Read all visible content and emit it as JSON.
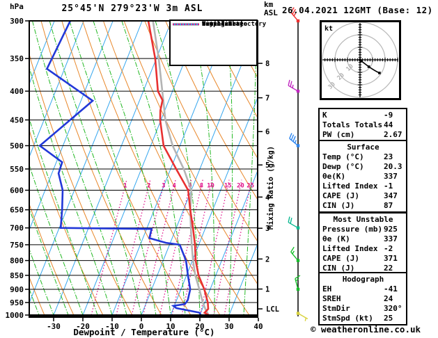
{
  "header": {
    "station_title": "25°45'N 279°23'W 3m ASL",
    "datetime_title": "26.04.2021 12GMT (Base: 12)",
    "pressure_unit": "hPa",
    "altitude_unit_line1": "km",
    "altitude_unit_line2": "ASL"
  },
  "footer": {
    "xaxis_label": "Dewpoint / Temperature (°C)",
    "copyright": "© weatheronline.co.uk"
  },
  "legend": {
    "items": [
      {
        "label": "Temperature",
        "color": "#e83030",
        "width": 4,
        "style": "solid"
      },
      {
        "label": "Dewpoint",
        "color": "#2238d8",
        "width": 4,
        "style": "solid"
      },
      {
        "label": "Parcel Trajectory",
        "color": "#b4b4b4",
        "width": 4,
        "style": "solid"
      },
      {
        "label": "Dry Adiabat",
        "color": "#e8872a",
        "width": 2,
        "style": "solid"
      },
      {
        "label": "Wet Adiabat",
        "color": "#22b822",
        "width": 2,
        "style": "solid"
      },
      {
        "label": "Isotherm",
        "color": "#35a6ee",
        "width": 2,
        "style": "solid"
      },
      {
        "label": "Mixing Ratio",
        "color": "#e0148c",
        "width": 2,
        "style": "dotted"
      }
    ]
  },
  "chart_data": {
    "type": "skewt-log-p-sounding",
    "pressure_ticks_hpa": [
      300,
      350,
      400,
      450,
      500,
      550,
      600,
      650,
      700,
      750,
      800,
      850,
      900,
      950,
      1000
    ],
    "temp_ticks_c": [
      -30,
      -20,
      -10,
      0,
      10,
      20,
      30,
      40
    ],
    "km_ticks": [
      {
        "km": 1,
        "hpa": 899
      },
      {
        "km": 2,
        "hpa": 795
      },
      {
        "km": 3,
        "hpa": 701
      },
      {
        "km": 4,
        "hpa": 617
      },
      {
        "km": 5,
        "hpa": 541
      },
      {
        "km": 6,
        "hpa": 472
      },
      {
        "km": 7,
        "hpa": 411
      },
      {
        "km": 8,
        "hpa": 357
      }
    ],
    "lcl": {
      "label": "LCL",
      "hpa": 975
    },
    "mixing_ratio_axis_label": "Mixing Ratio (g/kg)",
    "mixing_ratio_lines_gkg": [
      1,
      2,
      3,
      4,
      6,
      8,
      10,
      15,
      20,
      25
    ],
    "mixing_ratio_label_row_hpa": 588,
    "temperature_profile_c_by_hpa": [
      [
        1000,
        23
      ],
      [
        991,
        21.3
      ],
      [
        975,
        22
      ],
      [
        950,
        21
      ],
      [
        925,
        19.5
      ],
      [
        900,
        18
      ],
      [
        850,
        14.1
      ],
      [
        800,
        11.1
      ],
      [
        750,
        8.7
      ],
      [
        700,
        5.7
      ],
      [
        650,
        2.3
      ],
      [
        600,
        -1.1
      ],
      [
        550,
        -8.1
      ],
      [
        500,
        -15.6
      ],
      [
        450,
        -20.3
      ],
      [
        433,
        -21.5
      ],
      [
        415,
        -22.2
      ],
      [
        400,
        -25
      ],
      [
        350,
        -30.4
      ],
      [
        300,
        -37.9
      ]
    ],
    "dewpoint_profile_c_by_hpa": [
      [
        1000,
        20.3
      ],
      [
        990,
        19.5
      ],
      [
        972,
        11
      ],
      [
        963,
        9.7
      ],
      [
        956,
        13.4
      ],
      [
        940,
        13.8
      ],
      [
        900,
        13.2
      ],
      [
        850,
        10.5
      ],
      [
        800,
        7.8
      ],
      [
        750,
        3.5
      ],
      [
        744,
        -1.5
      ],
      [
        730,
        -7.8
      ],
      [
        703,
        -8.3
      ],
      [
        700,
        -39.5
      ],
      [
        650,
        -41.5
      ],
      [
        600,
        -44
      ],
      [
        560,
        -47.7
      ],
      [
        535,
        -48
      ],
      [
        500,
        -57.9
      ],
      [
        416,
        -46
      ],
      [
        365,
        -66
      ],
      [
        300,
        -64.6
      ]
    ],
    "parcel_profile_c_by_hpa": [
      [
        1000,
        23
      ],
      [
        975,
        21
      ],
      [
        950,
        19.3
      ],
      [
        900,
        16.3
      ],
      [
        850,
        13.0
      ],
      [
        800,
        10.2
      ],
      [
        750,
        7.6
      ],
      [
        700,
        5.0
      ],
      [
        650,
        2.3
      ],
      [
        600,
        0
      ],
      [
        550,
        -5.5
      ],
      [
        500,
        -12.5
      ],
      [
        450,
        -18.5
      ],
      [
        400,
        -23.5
      ],
      [
        350,
        -29.2
      ],
      [
        300,
        -36.3
      ]
    ],
    "wind_barbs": [
      {
        "hpa": 300,
        "from_deg": 320,
        "speed_kt": 25,
        "color": "#f03030"
      },
      {
        "hpa": 400,
        "from_deg": 300,
        "speed_kt": 25,
        "color": "#c026c0"
      },
      {
        "hpa": 500,
        "from_deg": 310,
        "speed_kt": 35,
        "color": "#2e86f0"
      },
      {
        "hpa": 700,
        "from_deg": 300,
        "speed_kt": 20,
        "color": "#0ab890"
      },
      {
        "hpa": 800,
        "from_deg": 320,
        "speed_kt": 15,
        "color": "#16be2a"
      },
      {
        "hpa": 900,
        "from_deg": 345,
        "speed_kt": 15,
        "color": "#16be2a"
      },
      {
        "hpa": 993,
        "from_deg": 120,
        "speed_kt": 5,
        "color": "#d8d23e"
      }
    ],
    "hodograph": {
      "unit": "kt",
      "ring_step_kt": 10,
      "ring_labels": [
        "10",
        "20",
        "30"
      ],
      "trace_uv_kt": [
        [
          15.5,
          -10.5
        ],
        [
          7,
          -5.5
        ],
        [
          0.8,
          -0.8
        ]
      ],
      "dots_uv_kt": [
        [
          15.5,
          -10.5
        ],
        [
          7,
          -5.5
        ],
        [
          0,
          0
        ]
      ]
    }
  },
  "panel": {
    "boxes": [
      {
        "title": "",
        "rows": [
          [
            "K",
            "-9"
          ],
          [
            "Totals Totals",
            "44"
          ],
          [
            "PW (cm)",
            "2.67"
          ]
        ]
      },
      {
        "title": "Surface",
        "rows": [
          [
            "Temp (°C)",
            "23"
          ],
          [
            "Dewp (°C)",
            "20.3"
          ],
          [
            "θe(K)",
            "337"
          ],
          [
            "Lifted Index",
            "-1"
          ],
          [
            "CAPE (J)",
            "347"
          ],
          [
            "CIN (J)",
            "87"
          ]
        ]
      },
      {
        "title": "Most Unstable",
        "rows": [
          [
            "Pressure (mb)",
            "925"
          ],
          [
            "θe (K)",
            "337"
          ],
          [
            "Lifted Index",
            "-2"
          ],
          [
            "CAPE (J)",
            "371"
          ],
          [
            "CIN (J)",
            "22"
          ]
        ]
      },
      {
        "title": "Hodograph",
        "rows": [
          [
            "EH",
            "-41"
          ],
          [
            "SREH",
            "24"
          ],
          [
            "StmDir",
            "320°"
          ],
          [
            "StmSpd (kt)",
            "25"
          ]
        ]
      }
    ]
  }
}
